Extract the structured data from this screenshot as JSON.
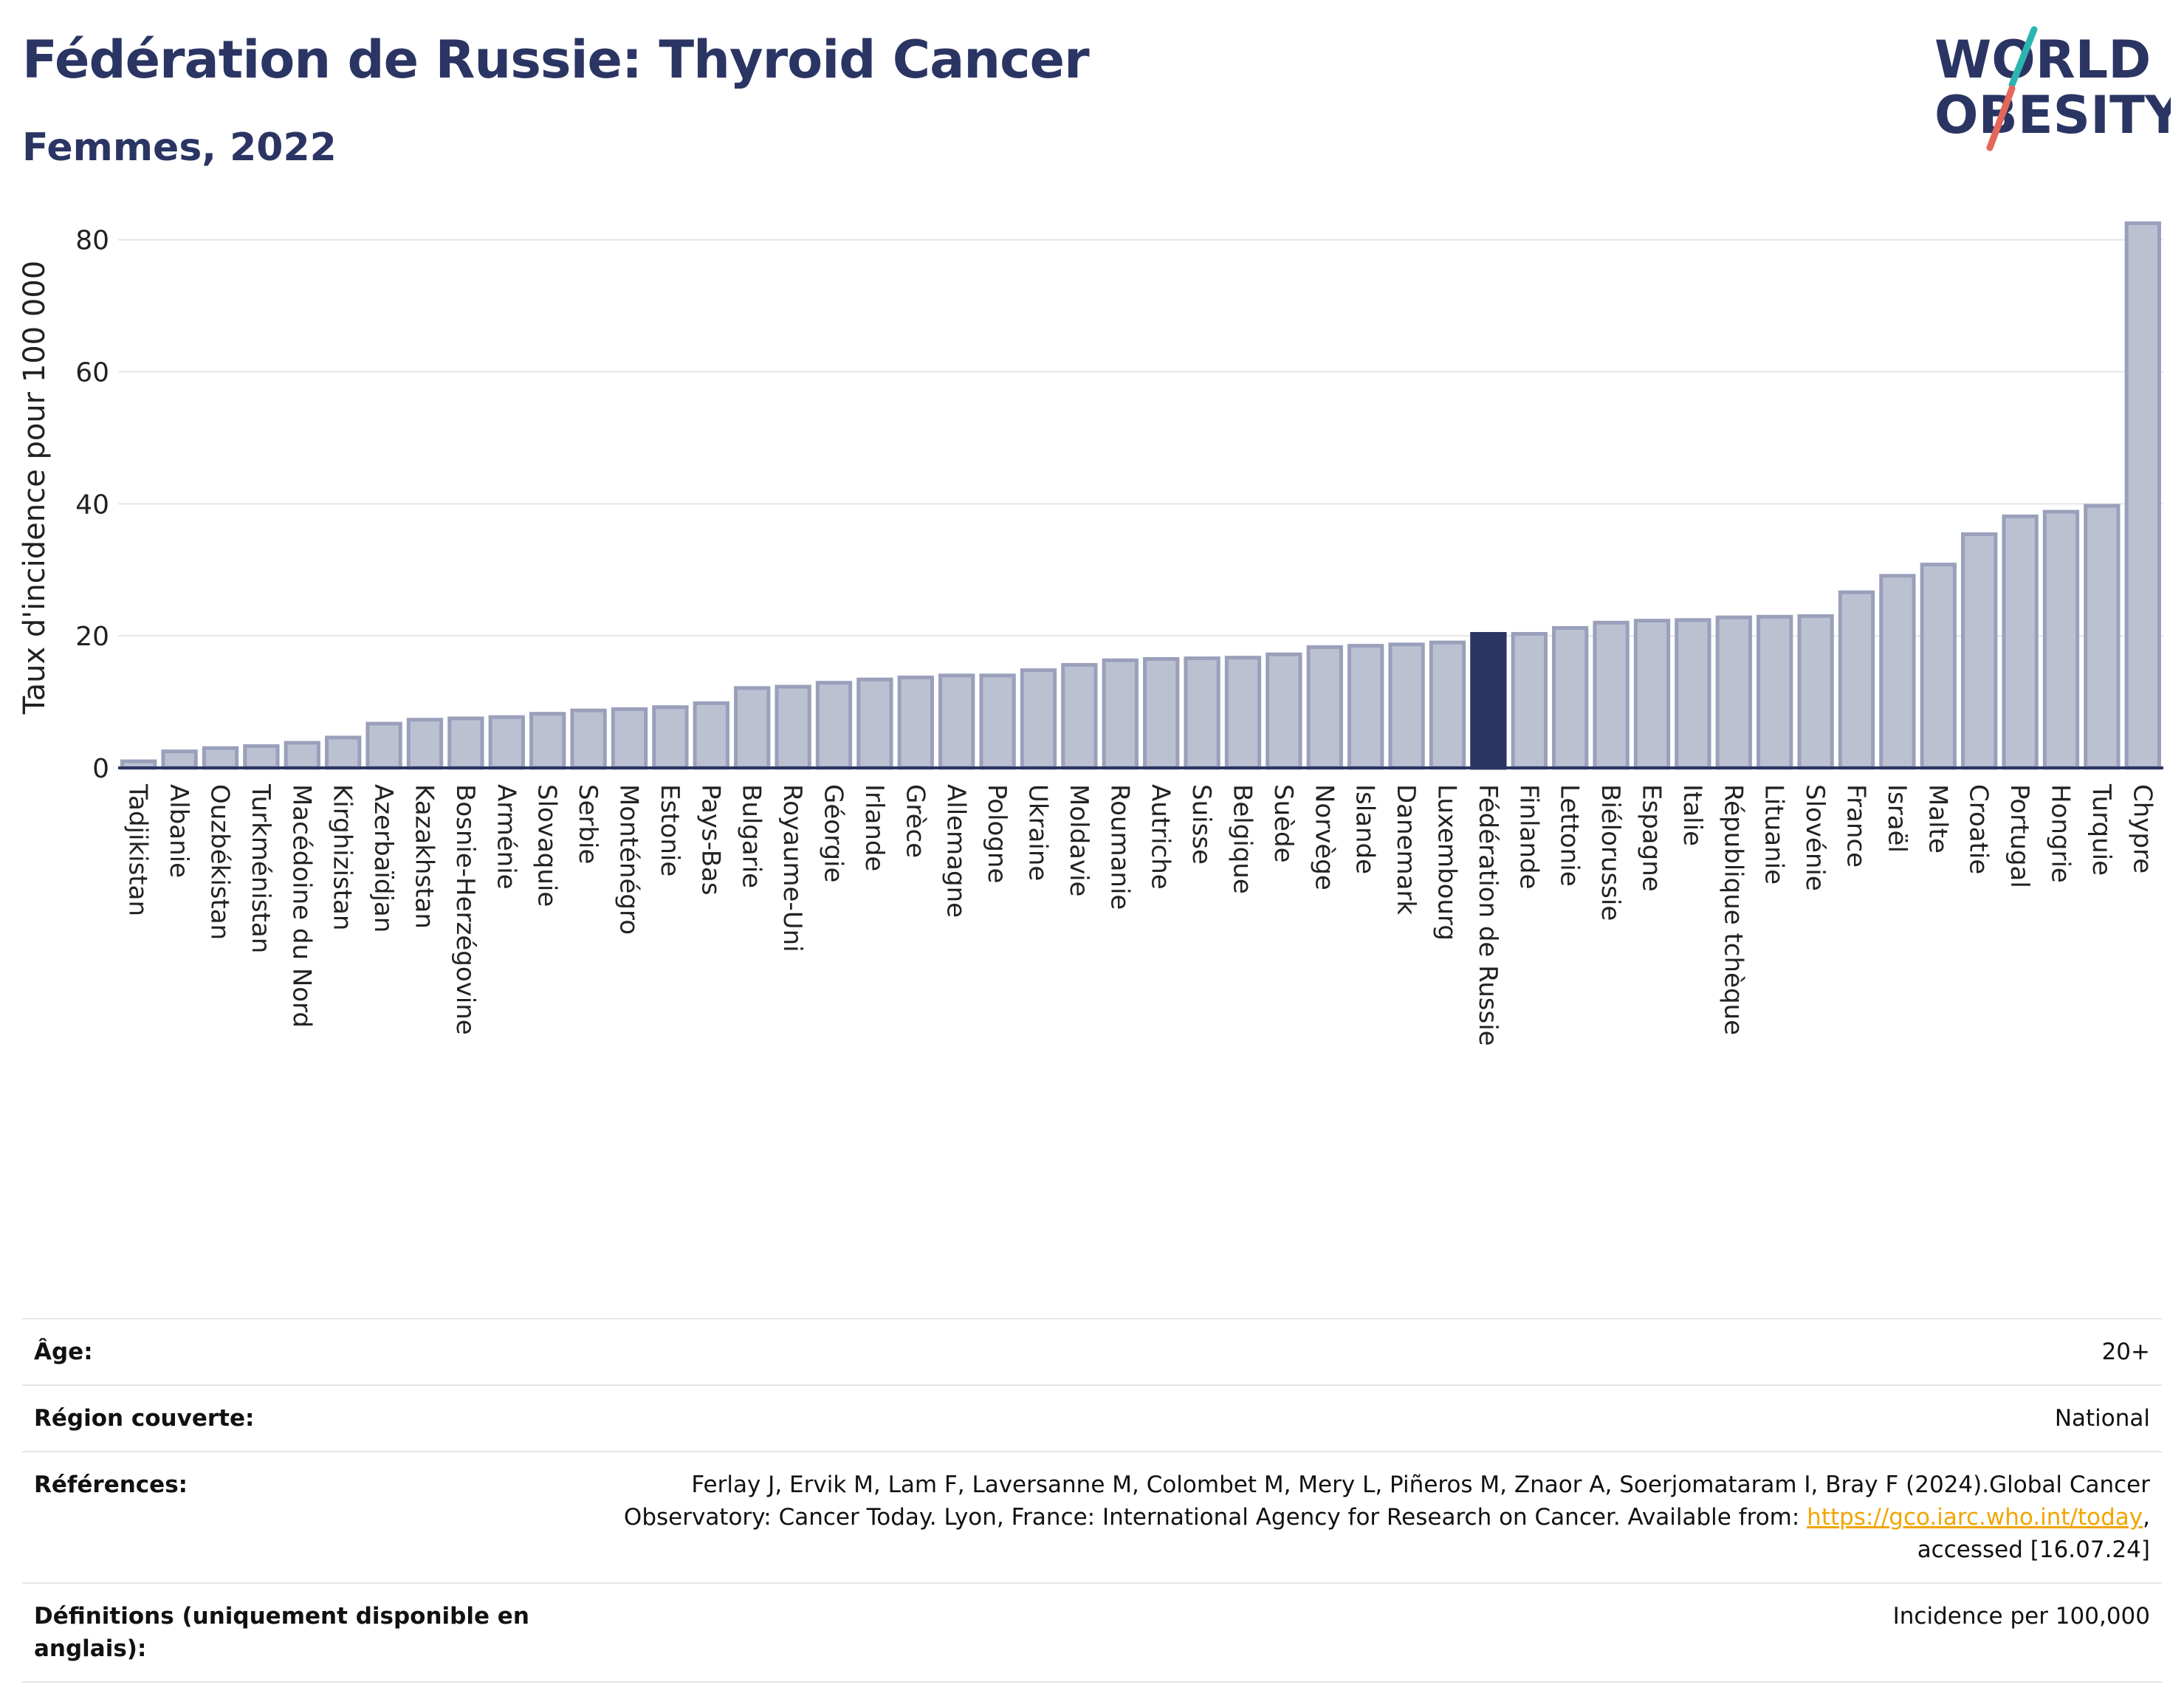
{
  "header": {
    "title": "Fédération de Russie: Thyroid Cancer",
    "subtitle": "Femmes, 2022"
  },
  "logo": {
    "line1": "WORLD",
    "line2": "OBESITY",
    "colors": {
      "text": "#2b3563",
      "slash_teal": "#2bb5b0",
      "slash_red": "#e5675a"
    }
  },
  "colors": {
    "bar_default": "#bcc1d2",
    "bar_border": "#9aa0bb",
    "bar_highlight": "#2b3563",
    "grid": "#e6e6e6",
    "axis": "#2b3563"
  },
  "chart_data": {
    "type": "bar",
    "ylabel": "Taux d'incidence pour 100 000",
    "ylim": [
      0,
      85
    ],
    "yticks": [
      0,
      20,
      40,
      60,
      80
    ],
    "grid": true,
    "highlight": "Fédération de Russie",
    "categories": [
      "Tadjikistan",
      "Albanie",
      "Ouzbékistan",
      "Turkménistan",
      "Macédoine du Nord",
      "Kirghizistan",
      "Azerbaïdjan",
      "Kazakhstan",
      "Bosnie-Herzégovine",
      "Arménie",
      "Slovaquie",
      "Serbie",
      "Monténégro",
      "Estonie",
      "Pays-Bas",
      "Bulgarie",
      "Royaume-Uni",
      "Géorgie",
      "Irlande",
      "Grèce",
      "Allemagne",
      "Pologne",
      "Ukraine",
      "Moldavie",
      "Roumanie",
      "Autriche",
      "Suisse",
      "Belgique",
      "Suède",
      "Norvège",
      "Islande",
      "Danemark",
      "Luxembourg",
      "Fédération de Russie",
      "Finlande",
      "Lettonie",
      "Biélorussie",
      "Espagne",
      "Italie",
      "République tchèque",
      "Lituanie",
      "Slovénie",
      "France",
      "Israël",
      "Malte",
      "Croatie",
      "Portugal",
      "Hongrie",
      "Turquie",
      "Chypre"
    ],
    "values": [
      1.0,
      2.5,
      3.0,
      3.3,
      3.8,
      4.6,
      6.7,
      7.3,
      7.5,
      7.7,
      8.2,
      8.7,
      8.9,
      9.2,
      9.8,
      12.1,
      12.3,
      12.9,
      13.4,
      13.7,
      14.0,
      14.0,
      14.8,
      15.6,
      16.3,
      16.5,
      16.6,
      16.7,
      17.2,
      18.3,
      18.5,
      18.7,
      19.0,
      20.3,
      20.3,
      21.2,
      22.0,
      22.3,
      22.4,
      22.8,
      22.9,
      23.0,
      26.6,
      29.1,
      30.8,
      35.4,
      38.1,
      38.8,
      39.7,
      82.5
    ]
  },
  "meta": {
    "rows": [
      {
        "label": "Âge:",
        "value": "20+"
      },
      {
        "label": "Région couverte:",
        "value": "National"
      },
      {
        "label": "Références:",
        "value_before": "Ferlay J, Ervik M, Lam F, Laversanne M, Colombet M, Mery L, Piñeros M, Znaor A, Soerjomataram I, Bray F (2024).Global Cancer Observatory: Cancer Today. Lyon, France: International Agency for Research on Cancer. Available from: ",
        "link": "https://gco.iarc.who.int/today",
        "value_after": ", accessed [16.07.24]"
      },
      {
        "label": "Définitions (uniquement disponible en anglais):",
        "value": "Incidence per 100,000"
      }
    ]
  }
}
